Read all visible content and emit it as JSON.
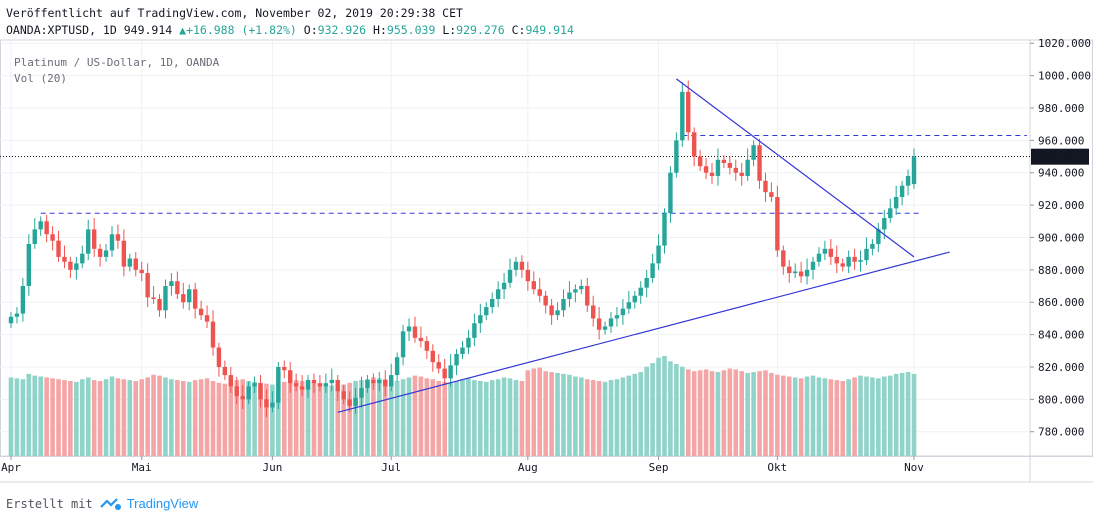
{
  "header": {
    "published": "Veröffentlicht auf TradingView.com, November 02, 2019 20:29:38 CET",
    "symbol": "OANDA:XPTUSD, 1D",
    "last": "949.914",
    "change": "+16.988 (+1.82%)",
    "o_label": "O:",
    "o": "932.926",
    "h_label": "H:",
    "h": "955.039",
    "l_label": "L:",
    "l": "929.276",
    "c_label": "C:",
    "c": "949.914"
  },
  "legend": {
    "title": "Platinum / US-Dollar, 1D, OANDA",
    "volume": "Vol (20)"
  },
  "footer": {
    "made_with": "Erstellt mit",
    "brand": "TradingView"
  },
  "colors": {
    "up": "#26a69a",
    "down": "#ef5350",
    "vol_up": "#8fd3c9",
    "vol_down": "#f4a6a6",
    "trendline": "#3436d6",
    "grid": "#eef0f3"
  },
  "chart_data": {
    "type": "candlestick",
    "title": "Platinum / US-Dollar, 1D, OANDA",
    "ylim": [
      765,
      1022
    ],
    "y_ticks": [
      "1020.000",
      "1000.000",
      "980.000",
      "960.000",
      "940.000",
      "920.000",
      "900.000",
      "880.000",
      "860.000",
      "840.000",
      "820.000",
      "800.000",
      "780.000"
    ],
    "x_ticks": [
      {
        "label": "Apr",
        "index": 0
      },
      {
        "label": "Mai",
        "index": 22
      },
      {
        "label": "Jun",
        "index": 44
      },
      {
        "label": "Jul",
        "index": 64
      },
      {
        "label": "Aug",
        "index": 87
      },
      {
        "label": "Sep",
        "index": 109
      },
      {
        "label": "Okt",
        "index": 129
      },
      {
        "label": "Nov",
        "index": 152
      }
    ],
    "last_price": {
      "value": 949.914,
      "label": "949.914"
    },
    "last_price_line": 950,
    "dashed_levels": [
      {
        "value": 915,
        "from_index": 5,
        "to_index": 153
      },
      {
        "value": 963,
        "from_index": 113,
        "to_index": 171
      }
    ],
    "trendlines": [
      {
        "from": [
          55,
          792
        ],
        "to": [
          158,
          891
        ]
      },
      {
        "from": [
          112,
          998
        ],
        "to": [
          152,
          888
        ]
      }
    ],
    "closes": [
      851,
      853,
      870,
      896,
      905,
      910,
      902,
      898,
      888,
      885,
      880,
      884,
      890,
      905,
      893,
      888,
      892,
      902,
      898,
      882,
      887,
      880,
      878,
      863,
      862,
      855,
      870,
      873,
      865,
      860,
      868,
      856,
      852,
      848,
      832,
      820,
      815,
      808,
      802,
      800,
      808,
      810,
      800,
      795,
      798,
      820,
      818,
      810,
      808,
      806,
      812,
      810,
      808,
      810,
      812,
      805,
      800,
      796,
      801,
      807,
      812,
      810,
      812,
      808,
      815,
      826,
      842,
      845,
      838,
      836,
      830,
      823,
      819,
      813,
      821,
      828,
      832,
      838,
      847,
      852,
      857,
      862,
      868,
      872,
      880,
      885,
      880,
      873,
      868,
      864,
      858,
      852,
      855,
      862,
      866,
      868,
      870,
      858,
      850,
      843,
      845,
      850,
      852,
      856,
      860,
      864,
      869,
      875,
      884,
      895,
      915,
      940,
      960,
      990,
      965,
      950,
      944,
      940,
      938,
      948,
      946,
      943,
      940,
      938,
      948,
      957,
      935,
      928,
      925,
      892,
      882,
      878,
      879,
      876,
      880,
      885,
      890,
      893,
      888,
      884,
      882,
      888,
      885,
      886,
      893,
      896,
      905,
      912,
      918,
      925,
      932,
      938,
      950
    ],
    "opens": [
      847,
      851,
      853,
      870,
      896,
      905,
      910,
      902,
      898,
      888,
      885,
      880,
      884,
      890,
      905,
      893,
      888,
      892,
      902,
      898,
      882,
      887,
      880,
      878,
      863,
      862,
      855,
      870,
      873,
      865,
      860,
      868,
      856,
      852,
      848,
      832,
      820,
      815,
      808,
      802,
      800,
      808,
      810,
      800,
      795,
      798,
      820,
      818,
      810,
      808,
      806,
      812,
      810,
      808,
      810,
      812,
      805,
      800,
      796,
      801,
      807,
      812,
      810,
      812,
      808,
      815,
      826,
      842,
      845,
      838,
      836,
      830,
      823,
      819,
      813,
      821,
      828,
      832,
      838,
      847,
      852,
      857,
      862,
      868,
      872,
      880,
      885,
      880,
      873,
      868,
      864,
      858,
      852,
      855,
      862,
      866,
      868,
      870,
      858,
      850,
      843,
      845,
      850,
      852,
      856,
      860,
      864,
      869,
      875,
      884,
      895,
      915,
      940,
      960,
      990,
      965,
      950,
      944,
      940,
      938,
      948,
      946,
      943,
      940,
      938,
      948,
      957,
      935,
      928,
      925,
      892,
      882,
      878,
      879,
      876,
      880,
      885,
      890,
      893,
      888,
      884,
      882,
      888,
      885,
      886,
      893,
      896,
      905,
      912,
      918,
      925,
      932,
      933
    ],
    "volumes": [
      88,
      87,
      86,
      92,
      90,
      89,
      88,
      87,
      86,
      85,
      84,
      83,
      86,
      88,
      85,
      84,
      86,
      89,
      87,
      86,
      85,
      84,
      86,
      88,
      91,
      90,
      88,
      86,
      85,
      84,
      83,
      85,
      86,
      87,
      84,
      82,
      81,
      83,
      85,
      86,
      84,
      83,
      82,
      81,
      80,
      82,
      83,
      84,
      85,
      84,
      83,
      82,
      81,
      80,
      79,
      78,
      80,
      82,
      84,
      85,
      86,
      88,
      87,
      86,
      85,
      84,
      86,
      88,
      90,
      89,
      87,
      86,
      84,
      83,
      82,
      84,
      86,
      87,
      85,
      84,
      83,
      85,
      86,
      88,
      87,
      85,
      84,
      96,
      98,
      99,
      95,
      94,
      93,
      92,
      91,
      89,
      88,
      86,
      85,
      84,
      83,
      85,
      86,
      88,
      90,
      92,
      94,
      100,
      104,
      110,
      112,
      106,
      103,
      100,
      97,
      95,
      96,
      97,
      95,
      94,
      96,
      98,
      97,
      95,
      93,
      94,
      95,
      96,
      93,
      91,
      90,
      89,
      88,
      87,
      89,
      90,
      88,
      87,
      86,
      85,
      84,
      86,
      88,
      90,
      89,
      88,
      87,
      89,
      90,
      92,
      93,
      94,
      92
    ]
  }
}
